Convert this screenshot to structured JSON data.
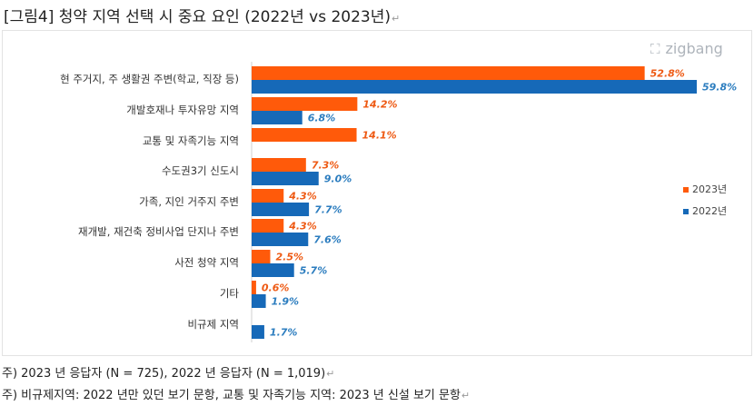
{
  "title": "[그림4] 청약 지역 선택 시 중요 요인 (2022년 vs 2023년)",
  "logo": {
    "text": "zigbang",
    "icon": "zigbang-logo-icon"
  },
  "colors": {
    "2023": "#ff5a0a",
    "2022": "#1669b8",
    "label2023": "#ee5a14",
    "label2022": "#2c7dbf"
  },
  "chart_data": {
    "type": "bar",
    "orientation": "horizontal",
    "categories": [
      "현 주거지, 주 생활권 주변(학교, 직장 등)",
      "개발호재나 투자유망 지역",
      "교통 및 자족기능 지역",
      "수도권3기 신도시",
      "가족, 지인 거주지 주변",
      "재개발, 재건축 정비사업 단지나 주변",
      "사전 청약 지역",
      "기타",
      "비규제 지역"
    ],
    "series": [
      {
        "name": "2023년",
        "values": [
          52.8,
          14.2,
          14.1,
          7.3,
          4.3,
          4.3,
          2.5,
          0.6,
          null
        ],
        "labels": [
          "52.8%",
          "14.2%",
          "14.1%",
          "7.3%",
          "4.3%",
          "4.3%",
          "2.5%",
          "0.6%",
          ""
        ]
      },
      {
        "name": "2022년",
        "values": [
          59.8,
          6.8,
          null,
          9.0,
          7.7,
          7.6,
          5.7,
          1.9,
          1.7
        ],
        "labels": [
          "59.8%",
          "6.8%",
          "",
          "9.0%",
          "7.7%",
          "7.6%",
          "5.7%",
          "1.9%",
          "1.7%"
        ]
      }
    ],
    "xlim": [
      0,
      60
    ],
    "grid": false,
    "legend": "right"
  },
  "notes": [
    "주) 2023 년 응답자 (N = 725), 2022 년 응답자 (N = 1,019)",
    "주) 비규제지역: 2022 년만 있던 보기 문항, 교통 및 자족기능 지역: 2023 년 신설 보기 문항"
  ]
}
